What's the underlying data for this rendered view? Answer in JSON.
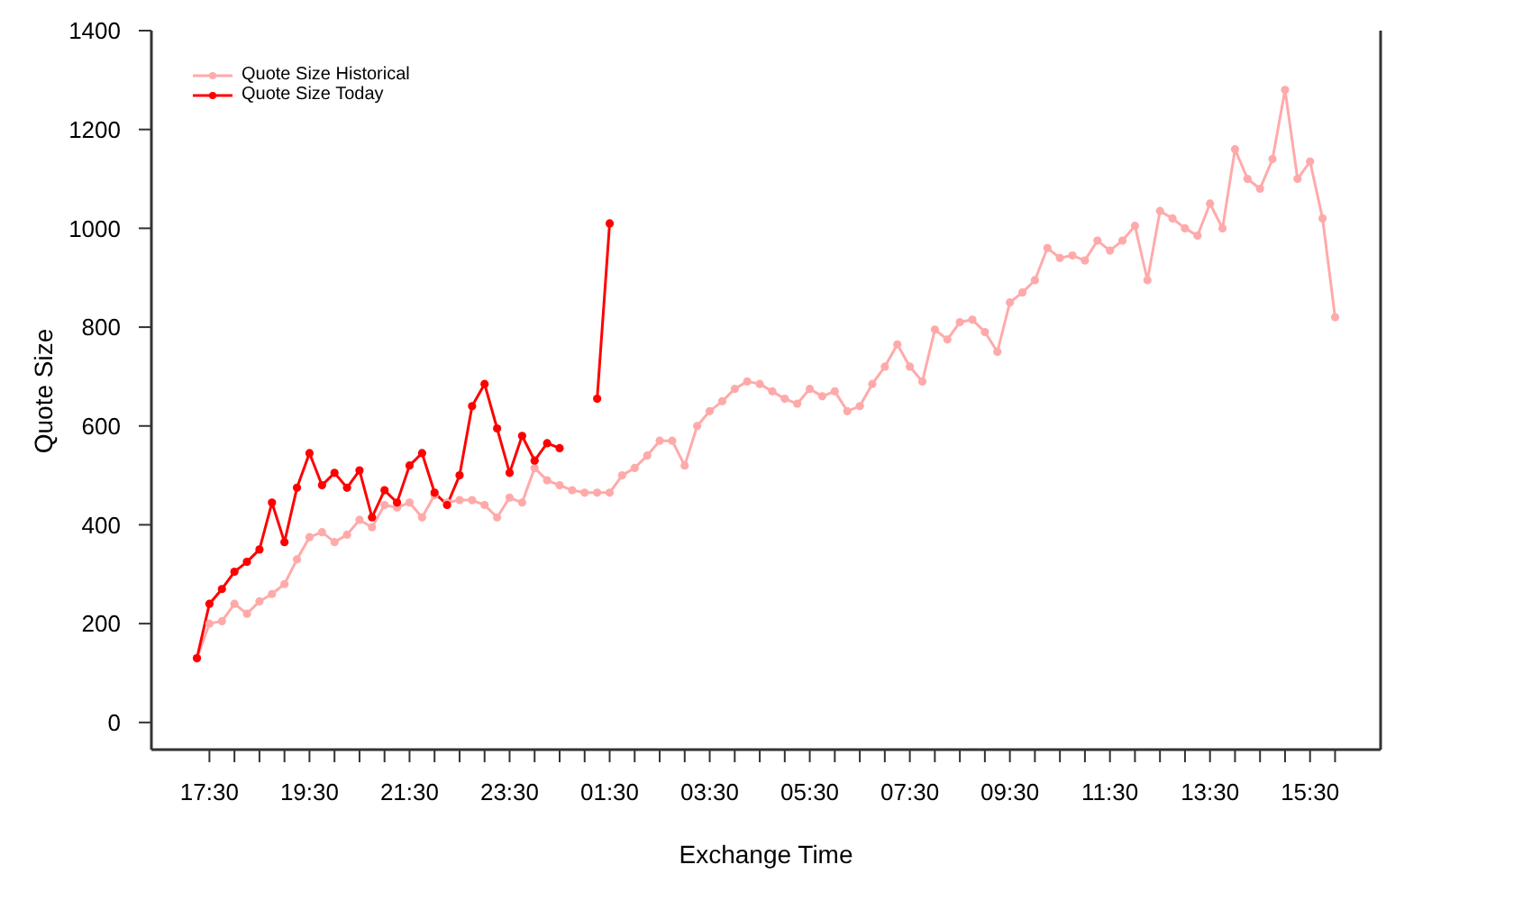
{
  "chart_data": {
    "type": "line",
    "xlabel": "Exchange Time",
    "ylabel": "Quote Size",
    "categories": [
      null,
      "17:30",
      null,
      null,
      null,
      null,
      null,
      null,
      null,
      "19:30",
      null,
      null,
      null,
      null,
      null,
      null,
      null,
      "21:30",
      null,
      null,
      null,
      null,
      null,
      null,
      null,
      "23:30",
      null,
      null,
      null,
      null,
      null,
      null,
      null,
      "01:30",
      null,
      null,
      null,
      null,
      null,
      null,
      null,
      "03:30",
      null,
      null,
      null,
      null,
      null,
      null,
      null,
      "05:30",
      null,
      null,
      null,
      null,
      null,
      null,
      null,
      "07:30",
      null,
      null,
      null,
      null,
      null,
      null,
      null,
      "09:30",
      null,
      null,
      null,
      null,
      null,
      null,
      null,
      "11:30",
      null,
      null,
      null,
      null,
      null,
      null,
      null,
      "13:30",
      null,
      null,
      null,
      null,
      null,
      null,
      null,
      "15:30",
      null,
      null
    ],
    "ylim": [
      -55,
      1400
    ],
    "yticks": [
      0,
      200,
      400,
      600,
      800,
      1000,
      1200,
      1400
    ],
    "legend": "top left",
    "marker": "circle",
    "line_style": "solid",
    "series": [
      {
        "name": "Quote Size Historical",
        "color": "#ffaaaa",
        "values": [
          130,
          200,
          205,
          240,
          220,
          245,
          260,
          280,
          330,
          375,
          385,
          365,
          380,
          410,
          395,
          440,
          435,
          445,
          415,
          460,
          445,
          450,
          450,
          440,
          415,
          455,
          445,
          515,
          490,
          480,
          470,
          465,
          465,
          465,
          500,
          515,
          540,
          570,
          570,
          520,
          600,
          630,
          650,
          675,
          690,
          685,
          670,
          655,
          645,
          675,
          660,
          670,
          630,
          640,
          685,
          720,
          765,
          720,
          690,
          795,
          775,
          810,
          815,
          790,
          750,
          850,
          870,
          895,
          960,
          940,
          945,
          935,
          975,
          955,
          975,
          1005,
          895,
          1035,
          1020,
          1000,
          985,
          1050,
          1000,
          1160,
          1100,
          1080,
          1140,
          1280,
          1100,
          1135,
          1020,
          820
        ]
      },
      {
        "name": "Quote Size Today",
        "color": "#ff0000",
        "values": [
          130,
          240,
          270,
          305,
          325,
          350,
          445,
          365,
          475,
          545,
          480,
          505,
          475,
          510,
          415,
          470,
          445,
          520,
          545,
          465,
          440,
          500,
          640,
          685,
          595,
          505,
          580,
          530,
          565,
          555,
          null,
          null,
          655,
          1010,
          null,
          null,
          null,
          null,
          null,
          null,
          null,
          null,
          null,
          null,
          null,
          null,
          null,
          null,
          null,
          null,
          null,
          null,
          null,
          null,
          null,
          null,
          null,
          null,
          null,
          null,
          null,
          null,
          null,
          null,
          null,
          null,
          null,
          null,
          null,
          null,
          null,
          null,
          null,
          null,
          null,
          null,
          null,
          null,
          null,
          null,
          null,
          null,
          null,
          null,
          null,
          null,
          null,
          null,
          null,
          null,
          null,
          null
        ]
      }
    ]
  }
}
